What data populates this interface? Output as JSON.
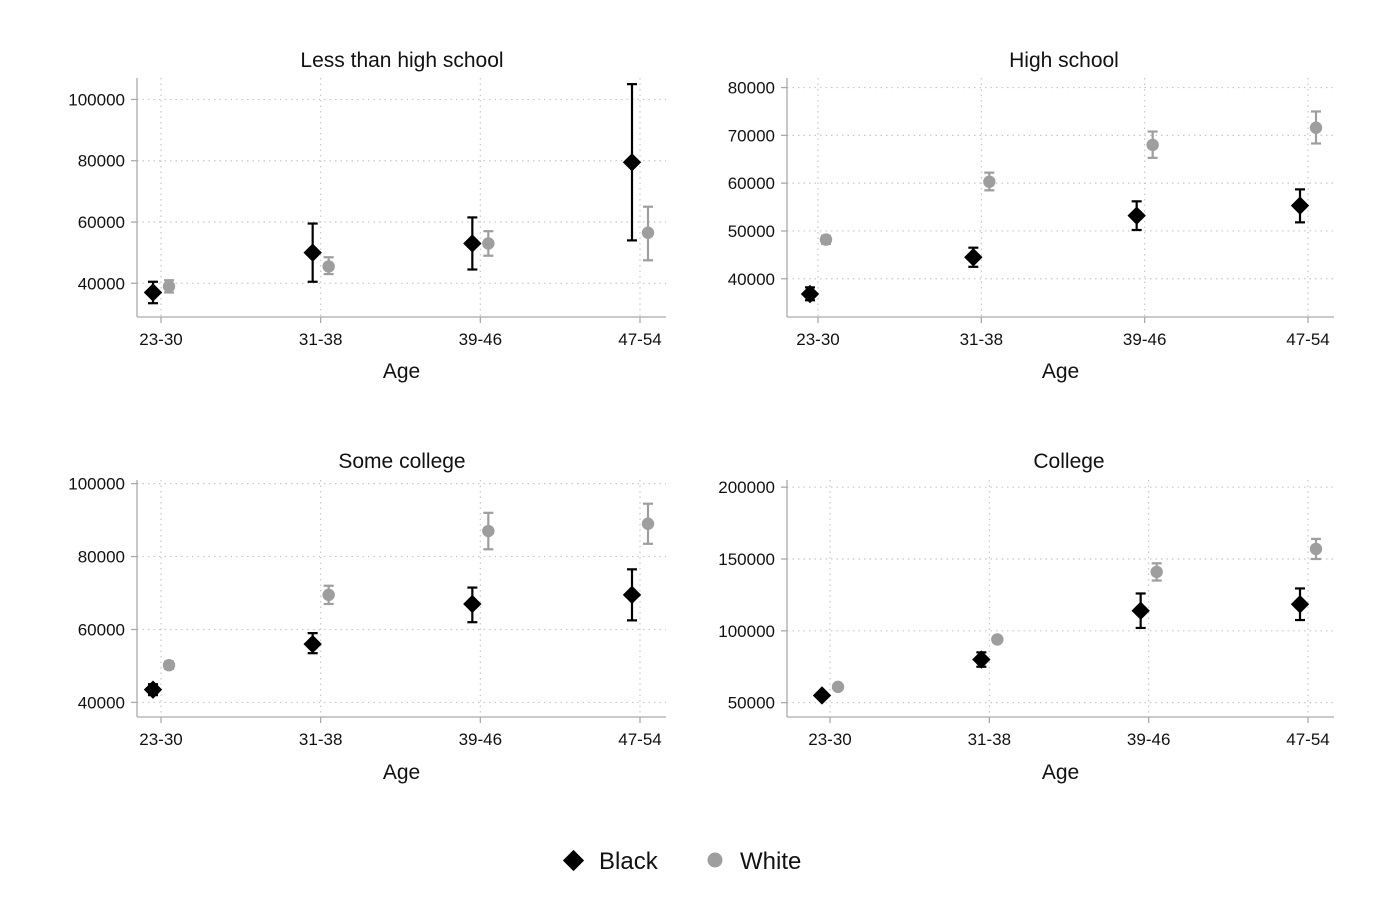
{
  "legend": {
    "black_label": "Black",
    "white_label": "White"
  },
  "colors": {
    "black": "#000000",
    "white_series": "#9e9e9e",
    "axis": "#aaaaaa",
    "grid": "#c8c8c8"
  },
  "chart_data": [
    {
      "type": "scatter",
      "title": "Less than high school",
      "xlabel": "Age",
      "ylabel": "",
      "categories": [
        "23-30",
        "31-38",
        "39-46",
        "47-54"
      ],
      "yticks": [
        40000,
        60000,
        80000,
        100000
      ],
      "ytick_labels": [
        "40000",
        "60000",
        "80000",
        "100000"
      ],
      "ylim": [
        29000,
        107000
      ],
      "grid": true,
      "series": [
        {
          "name": "Black",
          "values": [
            37000,
            50000,
            53000,
            79500
          ],
          "lower": [
            33500,
            40500,
            44500,
            54000
          ],
          "upper": [
            40500,
            59500,
            61500,
            105000
          ]
        },
        {
          "name": "White",
          "values": [
            39000,
            45500,
            53000,
            56500
          ],
          "lower": [
            37000,
            43000,
            49000,
            47500
          ],
          "upper": [
            41000,
            48500,
            57000,
            65000
          ]
        }
      ]
    },
    {
      "type": "scatter",
      "title": "High school",
      "xlabel": "Age",
      "ylabel": "",
      "categories": [
        "23-30",
        "31-38",
        "39-46",
        "47-54"
      ],
      "yticks": [
        40000,
        50000,
        60000,
        70000,
        80000
      ],
      "ytick_labels": [
        "40000",
        "50000",
        "60000",
        "70000",
        "80000"
      ],
      "ylim": [
        32000,
        82000
      ],
      "grid": true,
      "series": [
        {
          "name": "Black",
          "values": [
            36800,
            44500,
            53200,
            55300
          ],
          "lower": [
            35500,
            42500,
            50200,
            51800
          ],
          "upper": [
            38200,
            46500,
            56200,
            58700
          ]
        },
        {
          "name": "White",
          "values": [
            48200,
            60300,
            68000,
            71600
          ],
          "lower": [
            47300,
            58500,
            65300,
            68300
          ],
          "upper": [
            49000,
            62200,
            70800,
            75000
          ]
        }
      ]
    },
    {
      "type": "scatter",
      "title": "Some college",
      "xlabel": "Age",
      "ylabel": "",
      "categories": [
        "23-30",
        "31-38",
        "39-46",
        "47-54"
      ],
      "yticks": [
        40000,
        60000,
        80000,
        100000
      ],
      "ytick_labels": [
        "40000",
        "60000",
        "80000",
        "100000"
      ],
      "ylim": [
        36000,
        101000
      ],
      "grid": true,
      "series": [
        {
          "name": "Black",
          "values": [
            43500,
            56000,
            67000,
            69500
          ],
          "lower": [
            42000,
            53500,
            62000,
            62500
          ],
          "upper": [
            45000,
            59000,
            71500,
            76500
          ]
        },
        {
          "name": "White",
          "values": [
            50200,
            69500,
            87000,
            89000
          ],
          "lower": [
            49200,
            67000,
            82000,
            83500
          ],
          "upper": [
            51200,
            72000,
            92000,
            94500
          ]
        }
      ]
    },
    {
      "type": "scatter",
      "title": "College",
      "xlabel": "Age",
      "ylabel": "",
      "categories": [
        "23-30",
        "31-38",
        "39-46",
        "47-54"
      ],
      "yticks": [
        50000,
        100000,
        150000,
        200000
      ],
      "ytick_labels": [
        "50000",
        "100000",
        "150000",
        "200000"
      ],
      "ylim": [
        40000,
        205000
      ],
      "grid": true,
      "series": [
        {
          "name": "Black",
          "values": [
            55000,
            80000,
            114000,
            118500
          ],
          "lower": [
            53500,
            75000,
            102000,
            107500
          ],
          "upper": [
            56500,
            85000,
            126000,
            129500
          ]
        },
        {
          "name": "White",
          "values": [
            61000,
            94000,
            141000,
            157000
          ],
          "lower": [
            59500,
            92000,
            135000,
            150000
          ],
          "upper": [
            62500,
            96000,
            147000,
            164000
          ]
        }
      ]
    }
  ]
}
